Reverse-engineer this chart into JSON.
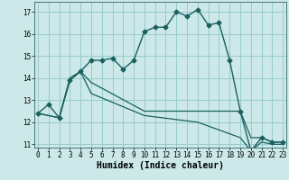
{
  "title": "",
  "xlabel": "Humidex (Indice chaleur)",
  "bg_color": "#cce8e8",
  "grid_color": "#99cccc",
  "line_color": "#1a6060",
  "series1_x": [
    0,
    1,
    2,
    3,
    4,
    5,
    6,
    7,
    8,
    9,
    10,
    11,
    12,
    13,
    14,
    15,
    16,
    17,
    18,
    19,
    20,
    21,
    22,
    23
  ],
  "series1_y": [
    12.4,
    12.8,
    12.2,
    13.9,
    14.3,
    14.8,
    14.8,
    14.9,
    14.4,
    14.8,
    16.1,
    16.3,
    16.3,
    17.0,
    16.8,
    17.1,
    16.4,
    16.5,
    14.8,
    12.5,
    10.7,
    11.3,
    11.1,
    11.1
  ],
  "series2_x": [
    0,
    2,
    3,
    4,
    5,
    10,
    15,
    19,
    20,
    21,
    22,
    23
  ],
  "series2_y": [
    12.4,
    12.2,
    14.0,
    14.3,
    13.8,
    12.5,
    12.5,
    12.5,
    11.3,
    11.3,
    11.1,
    11.1
  ],
  "series3_x": [
    0,
    2,
    3,
    4,
    5,
    10,
    15,
    19,
    20,
    21,
    22,
    23
  ],
  "series3_y": [
    12.4,
    12.2,
    13.9,
    14.3,
    13.3,
    12.3,
    12.0,
    11.3,
    10.7,
    11.1,
    11.0,
    11.0
  ],
  "xlim": [
    -0.3,
    23.3
  ],
  "ylim": [
    10.85,
    17.45
  ],
  "yticks": [
    11,
    12,
    13,
    14,
    15,
    16,
    17
  ],
  "xticks": [
    0,
    1,
    2,
    3,
    4,
    5,
    6,
    7,
    8,
    9,
    10,
    11,
    12,
    13,
    14,
    15,
    16,
    17,
    18,
    19,
    20,
    21,
    22,
    23
  ],
  "tick_fontsize": 5.5,
  "xlabel_fontsize": 7.0,
  "marker_size": 2.5,
  "line_width": 1.0
}
